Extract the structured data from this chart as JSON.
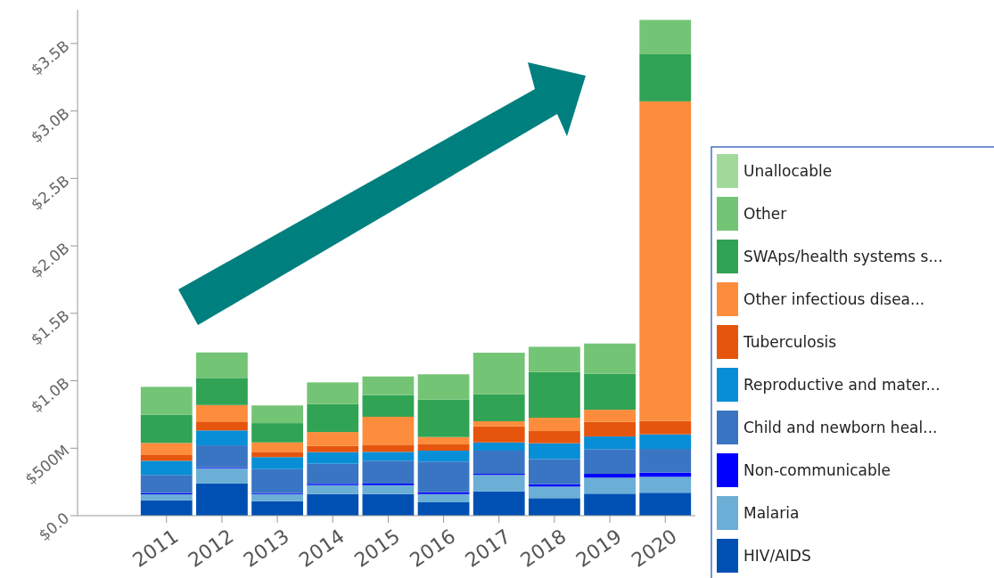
{
  "chart_data": {
    "type": "bar",
    "stacked": true,
    "legend": "right",
    "grid": false,
    "categories": [
      "2011",
      "2012",
      "2013",
      "2014",
      "2015",
      "2016",
      "2017",
      "2018",
      "2019",
      "2020"
    ],
    "ylim": [
      0,
      3750000000
    ],
    "yticks": [
      {
        "value": 0,
        "label": "$0.0"
      },
      {
        "value": 500000000,
        "label": "$500M"
      },
      {
        "value": 1000000000,
        "label": "$1.0B"
      },
      {
        "value": 1500000000,
        "label": "$1.5B"
      },
      {
        "value": 2000000000,
        "label": "$2.0B"
      },
      {
        "value": 2500000000,
        "label": "$2.5B"
      },
      {
        "value": 3000000000,
        "label": "$3.0B"
      },
      {
        "value": 3500000000,
        "label": "$3.5B"
      }
    ],
    "series": [
      {
        "name": "HIV/AIDS",
        "color": "#0050b4",
        "values": [
          114000000,
          240000000,
          108000000,
          160000000,
          160000000,
          99000000,
          180000000,
          130000000,
          163000000,
          170000000
        ]
      },
      {
        "name": "Malaria",
        "color": "#6baed6",
        "values": [
          44000000,
          112000000,
          52000000,
          66000000,
          66000000,
          61000000,
          122000000,
          86000000,
          119000000,
          118000000
        ]
      },
      {
        "name": "Non-communicable",
        "color": "#0000ff",
        "values": [
          9000000,
          6000000,
          7000000,
          10000000,
          12000000,
          14000000,
          8000000,
          17000000,
          28000000,
          31000000
        ]
      },
      {
        "name": "Child and newborn heal...",
        "color": "#3a75c4",
        "values": [
          135000000,
          163000000,
          178000000,
          149000000,
          169000000,
          227000000,
          172000000,
          187000000,
          183000000,
          176000000
        ]
      },
      {
        "name": "Reproductive and mater...",
        "color": "#088ed6",
        "values": [
          105000000,
          111000000,
          89000000,
          86000000,
          66000000,
          81000000,
          61000000,
          117000000,
          94000000,
          108000000
        ]
      },
      {
        "name": "Tuberculosis",
        "color": "#e6550d",
        "values": [
          42000000,
          66000000,
          39000000,
          46000000,
          53000000,
          46000000,
          119000000,
          90000000,
          108000000,
          99000000
        ]
      },
      {
        "name": "Other infectious disea...",
        "color": "#fd8d3c",
        "values": [
          90000000,
          122000000,
          70000000,
          103000000,
          207000000,
          55000000,
          38000000,
          99000000,
          90000000,
          2369000000
        ]
      },
      {
        "name": "SWAps/health systems s...",
        "color": "#31a354",
        "values": [
          209000000,
          201000000,
          143000000,
          207000000,
          160000000,
          277000000,
          200000000,
          339000000,
          267000000,
          349000000
        ]
      },
      {
        "name": "Other",
        "color": "#74c476",
        "values": [
          207000000,
          189000000,
          131000000,
          161000000,
          139000000,
          188000000,
          308000000,
          187000000,
          224000000,
          255000000
        ]
      },
      {
        "name": "Unallocable",
        "color": "#a1d99b",
        "values": [
          0,
          0,
          0,
          0,
          0,
          0,
          0,
          0,
          0,
          0
        ]
      }
    ]
  }
}
